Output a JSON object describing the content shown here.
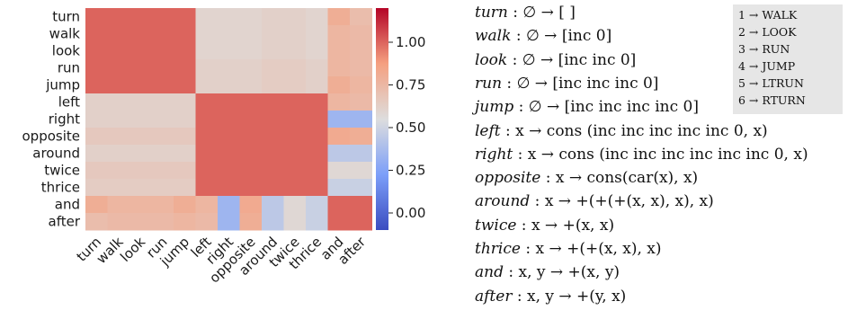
{
  "chart_data": {
    "type": "heatmap",
    "rows": [
      "turn",
      "walk",
      "look",
      "run",
      "jump",
      "left",
      "right",
      "opposite",
      "around",
      "twice",
      "thrice",
      "and",
      "after"
    ],
    "cols": [
      "turn",
      "walk",
      "look",
      "run",
      "jump",
      "left",
      "right",
      "opposite",
      "around",
      "twice",
      "thrice",
      "and",
      "after"
    ],
    "values": [
      [
        1.0,
        1.0,
        1.0,
        1.0,
        1.0,
        0.6,
        0.6,
        0.6,
        0.62,
        0.62,
        0.6,
        0.8,
        0.72
      ],
      [
        1.0,
        1.0,
        1.0,
        1.0,
        1.0,
        0.6,
        0.6,
        0.6,
        0.62,
        0.62,
        0.6,
        0.76,
        0.74
      ],
      [
        1.0,
        1.0,
        1.0,
        1.0,
        1.0,
        0.6,
        0.6,
        0.6,
        0.62,
        0.62,
        0.6,
        0.76,
        0.74
      ],
      [
        1.0,
        1.0,
        1.0,
        1.0,
        1.0,
        0.62,
        0.62,
        0.62,
        0.64,
        0.64,
        0.62,
        0.76,
        0.74
      ],
      [
        1.0,
        1.0,
        1.0,
        1.0,
        1.0,
        0.62,
        0.62,
        0.62,
        0.64,
        0.64,
        0.62,
        0.8,
        0.76
      ],
      [
        0.62,
        0.62,
        0.62,
        0.62,
        0.62,
        1.0,
        1.0,
        1.0,
        1.0,
        1.0,
        1.0,
        0.76,
        0.74
      ],
      [
        0.62,
        0.62,
        0.62,
        0.62,
        0.62,
        1.0,
        1.0,
        1.0,
        1.0,
        1.0,
        1.0,
        0.34,
        0.34
      ],
      [
        0.66,
        0.66,
        0.66,
        0.66,
        0.66,
        1.0,
        1.0,
        1.0,
        1.0,
        1.0,
        1.0,
        0.82,
        0.8
      ],
      [
        0.62,
        0.62,
        0.62,
        0.62,
        0.62,
        1.0,
        1.0,
        1.0,
        1.0,
        1.0,
        1.0,
        0.44,
        0.44
      ],
      [
        0.66,
        0.66,
        0.66,
        0.66,
        0.66,
        1.0,
        1.0,
        1.0,
        1.0,
        1.0,
        1.0,
        0.58,
        0.58
      ],
      [
        0.64,
        0.64,
        0.64,
        0.64,
        0.64,
        1.0,
        1.0,
        1.0,
        1.0,
        1.0,
        1.0,
        0.48,
        0.48
      ],
      [
        0.8,
        0.76,
        0.76,
        0.76,
        0.8,
        0.76,
        0.34,
        0.82,
        0.44,
        0.58,
        0.48,
        1.0,
        1.0
      ],
      [
        0.72,
        0.74,
        0.74,
        0.74,
        0.76,
        0.74,
        0.34,
        0.8,
        0.44,
        0.58,
        0.48,
        1.0,
        1.0
      ]
    ],
    "vmin": -0.1,
    "vmax": 1.2,
    "colormap": "coolwarm",
    "colorbar_ticks": [
      "0.00",
      "0.25",
      "0.50",
      "0.75",
      "1.00"
    ],
    "title": "",
    "xlabel": "",
    "ylabel": ""
  },
  "definitions": [
    {
      "name": "turn",
      "sig": ": ∅ → [ ]"
    },
    {
      "name": "walk",
      "sig": ": ∅ → [inc 0]"
    },
    {
      "name": "look",
      "sig": ": ∅ → [inc inc 0]"
    },
    {
      "name": "run",
      "sig": ": ∅ → [inc inc inc 0]"
    },
    {
      "name": "jump",
      "sig": ": ∅ → [inc inc inc inc 0]"
    },
    {
      "name": "left",
      "sig": ": x → cons (inc inc inc inc inc  0, x)"
    },
    {
      "name": "right",
      "sig": ": x → cons (inc inc inc inc inc inc  0, x)"
    },
    {
      "name": "opposite",
      "sig": ": x → cons(car(x), x)"
    },
    {
      "name": "around",
      "sig": ": x → +(+(+(x, x), x), x)"
    },
    {
      "name": "twice",
      "sig": ": x → +(x, x)"
    },
    {
      "name": "thrice",
      "sig": ": x → +(+(x, x), x)"
    },
    {
      "name": "and",
      "sig": ": x, y → +(x, y)"
    },
    {
      "name": "after",
      "sig": ": x, y → +(y, x)"
    }
  ],
  "legend": [
    "1 → WALK",
    "2 → LOOK",
    "3 → RUN",
    "4 → JUMP",
    "5 → LTRUN",
    "6 → RTURN"
  ]
}
